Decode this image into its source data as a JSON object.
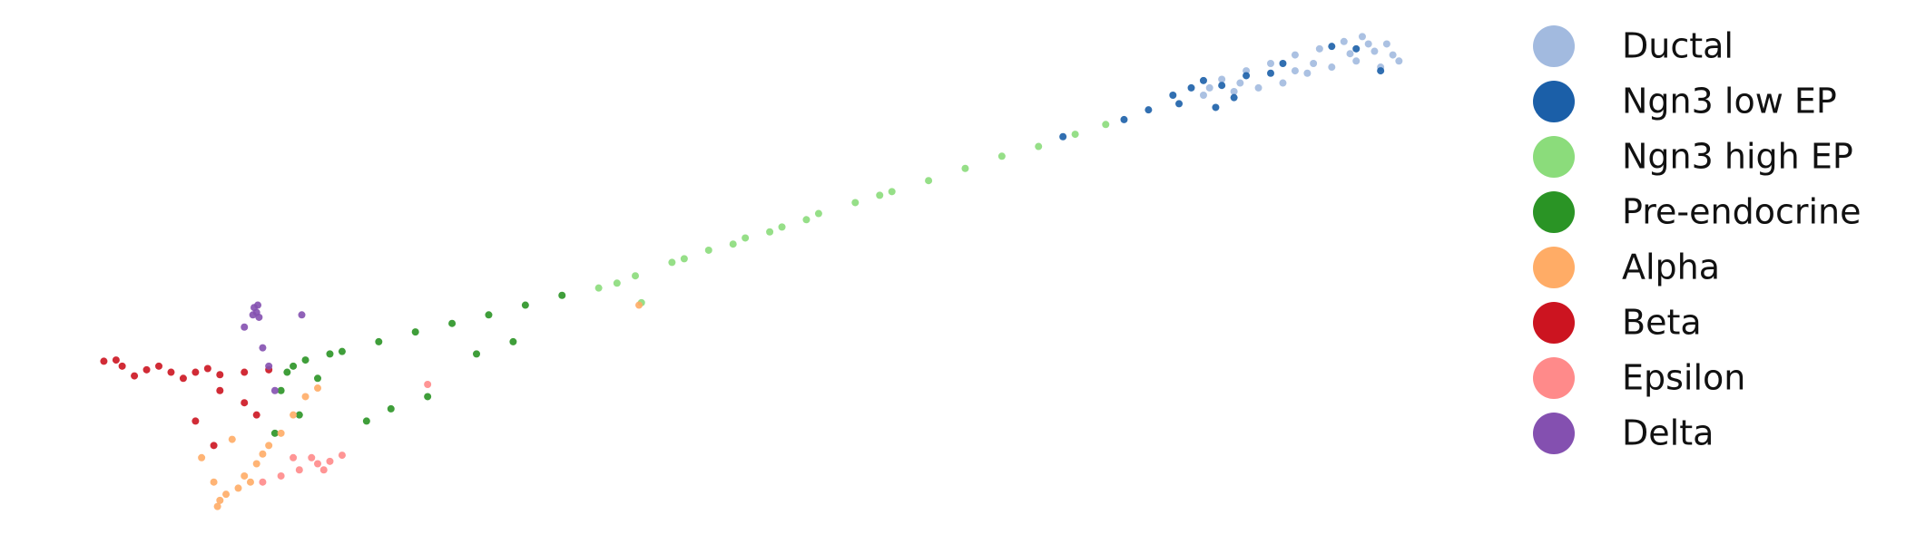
{
  "chart_data": {
    "type": "scatter",
    "xlim": [
      0,
      1560
    ],
    "ylim": [
      0,
      445
    ],
    "legend": "right",
    "series": [
      {
        "name": "Ductal",
        "color": "#a2badf",
        "x": [
          1000,
          1020,
          1040,
          1060,
          1080,
          1100,
          1120,
          1140,
          1130,
          1110,
          1090,
          1070,
          1050,
          1030,
          1010,
          990,
          1145,
          1125,
          1105,
          985,
          1015,
          1060,
          1075,
          1115,
          1135
        ],
        "values": [
          380,
          387,
          393,
          400,
          405,
          411,
          409,
          400,
          390,
          395,
          390,
          385,
          377,
          373,
          370,
          373,
          395,
          403,
          401,
          367,
          377,
          387,
          393,
          415,
          409
        ]
      },
      {
        "name": "Ngn3 low EP",
        "color": "#1b5fa8",
        "x": [
          960,
          975,
          1000,
          1020,
          1040,
          995,
          940,
          920,
          1090,
          1130,
          1110,
          870,
          1050,
          985,
          965,
          1010
        ],
        "values": [
          367,
          373,
          375,
          383,
          385,
          357,
          355,
          347,
          407,
          387,
          405,
          333,
          393,
          379,
          360,
          365
        ]
      },
      {
        "name": "Ngn3 high EP",
        "color": "#8bdc7b",
        "x": [
          490,
          520,
          550,
          580,
          610,
          640,
          670,
          700,
          730,
          760,
          790,
          820,
          850,
          880,
          905,
          600,
          660,
          720,
          525,
          505,
          560,
          630
        ],
        "values": [
          209,
          219,
          230,
          240,
          250,
          259,
          270,
          279,
          288,
          297,
          307,
          317,
          325,
          335,
          343,
          245,
          265,
          285,
          197,
          213,
          233,
          255
        ]
      },
      {
        "name": "Pre-endocrine",
        "color": "#2a9425",
        "x": [
          250,
          280,
          310,
          340,
          370,
          400,
          430,
          460,
          240,
          230,
          245,
          225,
          300,
          320,
          350,
          390,
          420,
          270,
          235,
          260
        ],
        "values": [
          150,
          157,
          165,
          173,
          180,
          187,
          195,
          203,
          145,
          125,
          105,
          90,
          100,
          110,
          120,
          155,
          165,
          155,
          140,
          135
        ]
      },
      {
        "name": "Alpha",
        "color": "#ffac66",
        "x": [
          185,
          195,
          180,
          200,
          210,
          220,
          230,
          240,
          250,
          260,
          175,
          165,
          190,
          205,
          215,
          523,
          178
        ],
        "values": [
          40,
          45,
          35,
          55,
          65,
          80,
          90,
          105,
          120,
          127,
          50,
          70,
          85,
          50,
          73,
          195,
          30
        ]
      },
      {
        "name": "Beta",
        "color": "#cc1420",
        "x": [
          85,
          100,
          120,
          140,
          160,
          180,
          200,
          220,
          95,
          130,
          170,
          160,
          175,
          200,
          180,
          210,
          150,
          110
        ],
        "values": [
          149,
          145,
          142,
          140,
          140,
          138,
          140,
          142,
          150,
          145,
          143,
          100,
          80,
          115,
          125,
          105,
          135,
          137
        ]
      },
      {
        "name": "Epsilon",
        "color": "#ff8a8a",
        "x": [
          230,
          245,
          260,
          270,
          280,
          255,
          215,
          350,
          240,
          265
        ],
        "values": [
          55,
          60,
          65,
          67,
          72,
          70,
          50,
          130,
          70,
          60
        ]
      },
      {
        "name": "Delta",
        "color": "#8450b0",
        "x": [
          208,
          210,
          212,
          207,
          211,
          215,
          220,
          200,
          247,
          225
        ],
        "values": [
          193,
          189,
          185,
          187,
          195,
          160,
          145,
          177,
          187,
          125
        ]
      }
    ]
  }
}
